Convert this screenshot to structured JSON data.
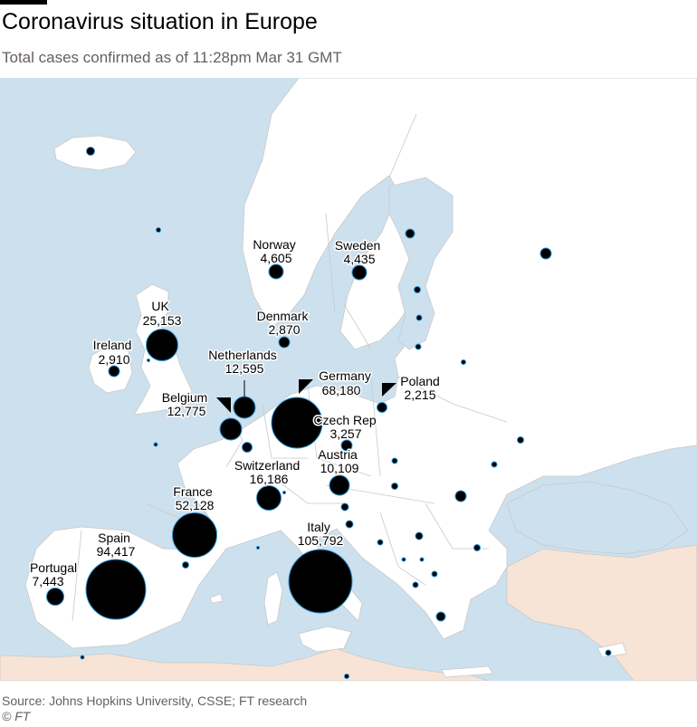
{
  "title": "Coronavirus situation in Europe",
  "subtitle": "Total cases confirmed as of 11:28pm Mar 31 GMT",
  "source": "Source: Johns Hopkins University, CSSE; FT research",
  "credit": "© FT",
  "colors": {
    "sea": "#cde0ee",
    "land": "#ffffff",
    "outside_land": "#f7e4d6",
    "border": "#c9c9c9",
    "bubble_fill": "#000000",
    "bubble_stroke": "#2a94d4"
  },
  "labeled_countries": [
    {
      "id": "uk",
      "name": "UK",
      "value": "25,153"
    },
    {
      "id": "ireland",
      "name": "Ireland",
      "value": "2,910"
    },
    {
      "id": "norway",
      "name": "Norway",
      "value": "4,605"
    },
    {
      "id": "sweden",
      "name": "Sweden",
      "value": "4,435"
    },
    {
      "id": "denmark",
      "name": "Denmark",
      "value": "2,870"
    },
    {
      "id": "netherlands",
      "name": "Netherlands",
      "value": "12,595"
    },
    {
      "id": "belgium",
      "name": "Belgium",
      "value": "12,775"
    },
    {
      "id": "germany",
      "name": "Germany",
      "value": "68,180"
    },
    {
      "id": "poland",
      "name": "Poland",
      "value": "2,215"
    },
    {
      "id": "czech",
      "name": "Czech Rep",
      "value": "3,257"
    },
    {
      "id": "austria",
      "name": "Austria",
      "value": "10,109"
    },
    {
      "id": "switzerland",
      "name": "Switzerland",
      "value": "16,186"
    },
    {
      "id": "france",
      "name": "France",
      "value": "52,128"
    },
    {
      "id": "spain",
      "name": "Spain",
      "value": "94,417"
    },
    {
      "id": "portugal",
      "name": "Portugal",
      "value": "7,443"
    },
    {
      "id": "italy",
      "name": "Italy",
      "value": "105,792"
    }
  ]
}
